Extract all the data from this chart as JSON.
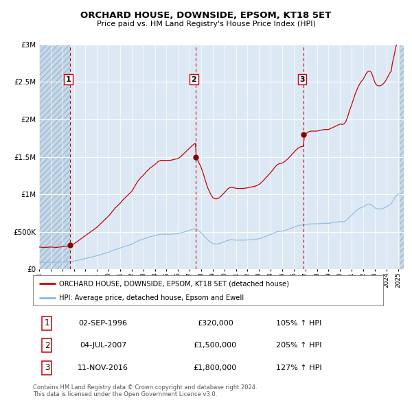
{
  "title": "ORCHARD HOUSE, DOWNSIDE, EPSOM, KT18 5ET",
  "subtitle": "Price paid vs. HM Land Registry's House Price Index (HPI)",
  "fig_facecolor": "#ffffff",
  "plot_bg_color": "#dce9f5",
  "hatch_facecolor": "#c5d8ea",
  "grid_color": "#ffffff",
  "red_line_color": "#cc0000",
  "blue_line_color": "#88b8d8",
  "sale_dot_color": "#880000",
  "vline_color": "#cc0000",
  "ylabel_values": [
    0,
    500000,
    1000000,
    1500000,
    2000000,
    2500000,
    3000000
  ],
  "ylabel_labels": [
    "£0",
    "£500K",
    "£1M",
    "£1.5M",
    "£2M",
    "£2.5M",
    "£3M"
  ],
  "xmin_year": 1994.0,
  "xmax_year": 2025.5,
  "ymin": 0,
  "ymax": 3000000,
  "xtick_years": [
    1994,
    1995,
    1996,
    1997,
    1998,
    1999,
    2000,
    2001,
    2002,
    2003,
    2004,
    2005,
    2006,
    2007,
    2008,
    2009,
    2010,
    2011,
    2012,
    2013,
    2014,
    2015,
    2016,
    2017,
    2018,
    2019,
    2020,
    2021,
    2022,
    2023,
    2024,
    2025
  ],
  "sales": [
    {
      "date": "1996-09-02",
      "price": 320000,
      "label": "1"
    },
    {
      "date": "2007-07-04",
      "price": 1500000,
      "label": "2"
    },
    {
      "date": "2016-11-11",
      "price": 1800000,
      "label": "3"
    }
  ],
  "hatch_end_year": 1996.67,
  "legend_red_label": "ORCHARD HOUSE, DOWNSIDE, EPSOM, KT18 5ET (detached house)",
  "legend_blue_label": "HPI: Average price, detached house, Epsom and Ewell",
  "table_rows": [
    {
      "num": "1",
      "date": "02-SEP-1996",
      "price": "£320,000",
      "hpi": "105% ↑ HPI"
    },
    {
      "num": "2",
      "date": "04-JUL-2007",
      "price": "£1,500,000",
      "hpi": "205% ↑ HPI"
    },
    {
      "num": "3",
      "date": "11-NOV-2016",
      "price": "£1,800,000",
      "hpi": "127% ↑ HPI"
    }
  ],
  "footer": "Contains HM Land Registry data © Crown copyright and database right 2024.\nThis data is licensed under the Open Government Licence v3.0.",
  "blue_hpi_values": [
    [
      1994.0,
      96000
    ],
    [
      1994.08,
      95500
    ],
    [
      1994.17,
      95000
    ],
    [
      1994.25,
      94800
    ],
    [
      1994.33,
      94500
    ],
    [
      1994.42,
      94000
    ],
    [
      1994.5,
      93800
    ],
    [
      1994.58,
      94000
    ],
    [
      1994.67,
      94500
    ],
    [
      1994.75,
      95000
    ],
    [
      1994.83,
      95200
    ],
    [
      1994.92,
      95500
    ],
    [
      1995.0,
      95800
    ],
    [
      1995.08,
      95500
    ],
    [
      1995.17,
      95200
    ],
    [
      1995.25,
      95000
    ],
    [
      1995.33,
      94800
    ],
    [
      1995.42,
      94500
    ],
    [
      1995.5,
      94200
    ],
    [
      1995.58,
      94500
    ],
    [
      1995.67,
      95000
    ],
    [
      1995.75,
      95500
    ],
    [
      1995.83,
      96000
    ],
    [
      1995.92,
      96500
    ],
    [
      1996.0,
      97000
    ],
    [
      1996.08,
      97500
    ],
    [
      1996.17,
      98000
    ],
    [
      1996.25,
      98500
    ],
    [
      1996.33,
      99000
    ],
    [
      1996.42,
      100000
    ],
    [
      1996.5,
      101000
    ],
    [
      1996.58,
      102000
    ],
    [
      1996.67,
      103000
    ],
    [
      1996.75,
      104500
    ],
    [
      1996.83,
      106000
    ],
    [
      1996.92,
      108000
    ],
    [
      1997.0,
      110000
    ],
    [
      1997.08,
      112000
    ],
    [
      1997.17,
      115000
    ],
    [
      1997.25,
      118000
    ],
    [
      1997.33,
      121000
    ],
    [
      1997.42,
      124000
    ],
    [
      1997.5,
      127000
    ],
    [
      1997.58,
      130000
    ],
    [
      1997.67,
      133000
    ],
    [
      1997.75,
      136000
    ],
    [
      1997.83,
      139000
    ],
    [
      1997.92,
      142000
    ],
    [
      1998.0,
      145000
    ],
    [
      1998.08,
      148000
    ],
    [
      1998.17,
      151000
    ],
    [
      1998.25,
      154000
    ],
    [
      1998.33,
      157000
    ],
    [
      1998.42,
      160000
    ],
    [
      1998.5,
      163000
    ],
    [
      1998.58,
      166000
    ],
    [
      1998.67,
      169000
    ],
    [
      1998.75,
      172000
    ],
    [
      1998.83,
      175000
    ],
    [
      1998.92,
      178000
    ],
    [
      1999.0,
      181000
    ],
    [
      1999.08,
      185000
    ],
    [
      1999.17,
      189000
    ],
    [
      1999.25,
      193000
    ],
    [
      1999.33,
      197000
    ],
    [
      1999.42,
      201000
    ],
    [
      1999.5,
      205000
    ],
    [
      1999.58,
      209000
    ],
    [
      1999.67,
      213000
    ],
    [
      1999.75,
      217000
    ],
    [
      1999.83,
      221000
    ],
    [
      1999.92,
      225000
    ],
    [
      2000.0,
      229000
    ],
    [
      2000.08,
      234000
    ],
    [
      2000.17,
      239000
    ],
    [
      2000.25,
      244000
    ],
    [
      2000.33,
      249000
    ],
    [
      2000.42,
      254000
    ],
    [
      2000.5,
      259000
    ],
    [
      2000.58,
      264000
    ],
    [
      2000.67,
      268000
    ],
    [
      2000.75,
      272000
    ],
    [
      2000.83,
      276000
    ],
    [
      2000.92,
      280000
    ],
    [
      2001.0,
      284000
    ],
    [
      2001.08,
      289000
    ],
    [
      2001.17,
      294000
    ],
    [
      2001.25,
      299000
    ],
    [
      2001.33,
      303000
    ],
    [
      2001.42,
      307000
    ],
    [
      2001.5,
      311000
    ],
    [
      2001.58,
      315000
    ],
    [
      2001.67,
      319000
    ],
    [
      2001.75,
      323000
    ],
    [
      2001.83,
      327000
    ],
    [
      2001.92,
      331000
    ],
    [
      2002.0,
      335000
    ],
    [
      2002.08,
      342000
    ],
    [
      2002.17,
      349000
    ],
    [
      2002.25,
      356000
    ],
    [
      2002.33,
      363000
    ],
    [
      2002.42,
      370000
    ],
    [
      2002.5,
      377000
    ],
    [
      2002.58,
      382000
    ],
    [
      2002.67,
      387000
    ],
    [
      2002.75,
      392000
    ],
    [
      2002.83,
      396000
    ],
    [
      2002.92,
      400000
    ],
    [
      2003.0,
      404000
    ],
    [
      2003.08,
      409000
    ],
    [
      2003.17,
      414000
    ],
    [
      2003.25,
      419000
    ],
    [
      2003.33,
      423000
    ],
    [
      2003.42,
      427000
    ],
    [
      2003.5,
      431000
    ],
    [
      2003.58,
      435000
    ],
    [
      2003.67,
      438000
    ],
    [
      2003.75,
      441000
    ],
    [
      2003.83,
      444000
    ],
    [
      2003.92,
      447000
    ],
    [
      2004.0,
      450000
    ],
    [
      2004.08,
      454000
    ],
    [
      2004.17,
      458000
    ],
    [
      2004.25,
      462000
    ],
    [
      2004.33,
      464000
    ],
    [
      2004.42,
      466000
    ],
    [
      2004.5,
      468000
    ],
    [
      2004.58,
      468000
    ],
    [
      2004.67,
      468000
    ],
    [
      2004.75,
      468000
    ],
    [
      2004.83,
      468000
    ],
    [
      2004.92,
      468000
    ],
    [
      2005.0,
      468000
    ],
    [
      2005.08,
      468000
    ],
    [
      2005.17,
      468000
    ],
    [
      2005.25,
      468000
    ],
    [
      2005.33,
      468000
    ],
    [
      2005.42,
      469000
    ],
    [
      2005.5,
      470000
    ],
    [
      2005.58,
      471000
    ],
    [
      2005.67,
      472000
    ],
    [
      2005.75,
      473000
    ],
    [
      2005.83,
      474000
    ],
    [
      2005.92,
      475000
    ],
    [
      2006.0,
      476000
    ],
    [
      2006.08,
      479000
    ],
    [
      2006.17,
      482000
    ],
    [
      2006.25,
      485000
    ],
    [
      2006.33,
      489000
    ],
    [
      2006.42,
      493000
    ],
    [
      2006.5,
      497000
    ],
    [
      2006.58,
      501000
    ],
    [
      2006.67,
      505000
    ],
    [
      2006.75,
      509000
    ],
    [
      2006.83,
      513000
    ],
    [
      2006.92,
      517000
    ],
    [
      2007.0,
      521000
    ],
    [
      2007.08,
      525000
    ],
    [
      2007.17,
      529000
    ],
    [
      2007.25,
      533000
    ],
    [
      2007.33,
      536000
    ],
    [
      2007.42,
      539000
    ],
    [
      2007.5,
      541000
    ],
    [
      2007.58,
      536000
    ],
    [
      2007.67,
      528000
    ],
    [
      2007.75,
      519000
    ],
    [
      2007.83,
      509000
    ],
    [
      2007.92,
      499000
    ],
    [
      2008.0,
      489000
    ],
    [
      2008.08,
      476000
    ],
    [
      2008.17,
      462000
    ],
    [
      2008.25,
      447000
    ],
    [
      2008.33,
      432000
    ],
    [
      2008.42,
      417000
    ],
    [
      2008.5,
      402000
    ],
    [
      2008.58,
      390000
    ],
    [
      2008.67,
      379000
    ],
    [
      2008.75,
      369000
    ],
    [
      2008.83,
      360000
    ],
    [
      2008.92,
      352000
    ],
    [
      2009.0,
      345000
    ],
    [
      2009.08,
      342000
    ],
    [
      2009.17,
      340000
    ],
    [
      2009.25,
      339000
    ],
    [
      2009.33,
      339000
    ],
    [
      2009.42,
      340000
    ],
    [
      2009.5,
      342000
    ],
    [
      2009.58,
      345000
    ],
    [
      2009.67,
      349000
    ],
    [
      2009.75,
      354000
    ],
    [
      2009.83,
      359000
    ],
    [
      2009.92,
      364000
    ],
    [
      2010.0,
      369000
    ],
    [
      2010.08,
      374000
    ],
    [
      2010.17,
      379000
    ],
    [
      2010.25,
      384000
    ],
    [
      2010.33,
      388000
    ],
    [
      2010.42,
      391000
    ],
    [
      2010.5,
      393000
    ],
    [
      2010.58,
      394000
    ],
    [
      2010.67,
      394000
    ],
    [
      2010.75,
      393000
    ],
    [
      2010.83,
      392000
    ],
    [
      2010.92,
      391000
    ],
    [
      2011.0,
      390000
    ],
    [
      2011.08,
      389000
    ],
    [
      2011.17,
      389000
    ],
    [
      2011.25,
      389000
    ],
    [
      2011.33,
      389000
    ],
    [
      2011.42,
      389000
    ],
    [
      2011.5,
      389000
    ],
    [
      2011.58,
      389000
    ],
    [
      2011.67,
      389500
    ],
    [
      2011.75,
      390000
    ],
    [
      2011.83,
      390500
    ],
    [
      2011.92,
      391000
    ],
    [
      2012.0,
      392000
    ],
    [
      2012.08,
      393000
    ],
    [
      2012.17,
      394000
    ],
    [
      2012.25,
      395000
    ],
    [
      2012.33,
      396000
    ],
    [
      2012.42,
      397000
    ],
    [
      2012.5,
      398000
    ],
    [
      2012.58,
      399000
    ],
    [
      2012.67,
      400000
    ],
    [
      2012.75,
      402000
    ],
    [
      2012.83,
      404000
    ],
    [
      2012.92,
      406000
    ],
    [
      2013.0,
      408000
    ],
    [
      2013.08,
      412000
    ],
    [
      2013.17,
      416000
    ],
    [
      2013.25,
      420000
    ],
    [
      2013.33,
      425000
    ],
    [
      2013.42,
      430000
    ],
    [
      2013.5,
      435000
    ],
    [
      2013.58,
      440000
    ],
    [
      2013.67,
      445000
    ],
    [
      2013.75,
      450000
    ],
    [
      2013.83,
      455000
    ],
    [
      2013.92,
      460000
    ],
    [
      2014.0,
      465000
    ],
    [
      2014.08,
      471000
    ],
    [
      2014.17,
      477000
    ],
    [
      2014.25,
      483000
    ],
    [
      2014.33,
      489000
    ],
    [
      2014.42,
      494000
    ],
    [
      2014.5,
      499000
    ],
    [
      2014.58,
      503000
    ],
    [
      2014.67,
      506000
    ],
    [
      2014.75,
      508000
    ],
    [
      2014.83,
      509000
    ],
    [
      2014.92,
      510000
    ],
    [
      2015.0,
      511000
    ],
    [
      2015.08,
      514000
    ],
    [
      2015.17,
      517000
    ],
    [
      2015.25,
      520000
    ],
    [
      2015.33,
      524000
    ],
    [
      2015.42,
      528000
    ],
    [
      2015.5,
      532000
    ],
    [
      2015.58,
      537000
    ],
    [
      2015.67,
      542000
    ],
    [
      2015.75,
      547000
    ],
    [
      2015.83,
      552000
    ],
    [
      2015.92,
      557000
    ],
    [
      2016.0,
      562000
    ],
    [
      2016.08,
      567000
    ],
    [
      2016.17,
      572000
    ],
    [
      2016.25,
      577000
    ],
    [
      2016.33,
      581000
    ],
    [
      2016.42,
      584000
    ],
    [
      2016.5,
      587000
    ],
    [
      2016.58,
      589000
    ],
    [
      2016.67,
      590000
    ],
    [
      2016.75,
      591000
    ],
    [
      2016.83,
      592000
    ],
    [
      2016.92,
      593000
    ],
    [
      2017.0,
      594000
    ],
    [
      2017.08,
      597000
    ],
    [
      2017.17,
      600000
    ],
    [
      2017.25,
      603000
    ],
    [
      2017.33,
      605000
    ],
    [
      2017.42,
      606000
    ],
    [
      2017.5,
      607000
    ],
    [
      2017.58,
      607000
    ],
    [
      2017.67,
      607000
    ],
    [
      2017.75,
      607000
    ],
    [
      2017.83,
      607000
    ],
    [
      2017.92,
      607000
    ],
    [
      2018.0,
      607000
    ],
    [
      2018.08,
      608000
    ],
    [
      2018.17,
      609000
    ],
    [
      2018.25,
      610000
    ],
    [
      2018.33,
      611000
    ],
    [
      2018.42,
      612000
    ],
    [
      2018.5,
      613000
    ],
    [
      2018.58,
      614000
    ],
    [
      2018.67,
      614000
    ],
    [
      2018.75,
      614000
    ],
    [
      2018.83,
      614000
    ],
    [
      2018.92,
      614000
    ],
    [
      2019.0,
      614000
    ],
    [
      2019.08,
      616000
    ],
    [
      2019.17,
      618000
    ],
    [
      2019.25,
      620000
    ],
    [
      2019.33,
      622000
    ],
    [
      2019.42,
      624000
    ],
    [
      2019.5,
      626000
    ],
    [
      2019.58,
      628000
    ],
    [
      2019.67,
      630000
    ],
    [
      2019.75,
      632000
    ],
    [
      2019.83,
      634000
    ],
    [
      2019.92,
      636000
    ],
    [
      2020.0,
      638000
    ],
    [
      2020.08,
      638000
    ],
    [
      2020.17,
      636000
    ],
    [
      2020.25,
      637000
    ],
    [
      2020.33,
      639000
    ],
    [
      2020.42,
      643000
    ],
    [
      2020.5,
      649000
    ],
    [
      2020.58,
      660000
    ],
    [
      2020.67,
      673000
    ],
    [
      2020.75,
      687000
    ],
    [
      2020.83,
      700000
    ],
    [
      2020.92,
      712000
    ],
    [
      2021.0,
      723000
    ],
    [
      2021.08,
      736000
    ],
    [
      2021.17,
      749000
    ],
    [
      2021.25,
      762000
    ],
    [
      2021.33,
      774000
    ],
    [
      2021.42,
      785000
    ],
    [
      2021.5,
      795000
    ],
    [
      2021.58,
      804000
    ],
    [
      2021.67,
      812000
    ],
    [
      2021.75,
      819000
    ],
    [
      2021.83,
      825000
    ],
    [
      2021.92,
      830000
    ],
    [
      2022.0,
      835000
    ],
    [
      2022.08,
      843000
    ],
    [
      2022.17,
      851000
    ],
    [
      2022.25,
      859000
    ],
    [
      2022.33,
      865000
    ],
    [
      2022.42,
      869000
    ],
    [
      2022.5,
      871000
    ],
    [
      2022.58,
      870000
    ],
    [
      2022.67,
      866000
    ],
    [
      2022.75,
      858000
    ],
    [
      2022.83,
      847000
    ],
    [
      2022.92,
      834000
    ],
    [
      2023.0,
      822000
    ],
    [
      2023.08,
      814000
    ],
    [
      2023.17,
      809000
    ],
    [
      2023.25,
      807000
    ],
    [
      2023.33,
      806000
    ],
    [
      2023.42,
      806000
    ],
    [
      2023.5,
      807000
    ],
    [
      2023.58,
      809000
    ],
    [
      2023.67,
      812000
    ],
    [
      2023.75,
      816000
    ],
    [
      2023.83,
      821000
    ],
    [
      2023.92,
      827000
    ],
    [
      2024.0,
      834000
    ],
    [
      2024.08,
      842000
    ],
    [
      2024.17,
      850000
    ],
    [
      2024.25,
      858000
    ],
    [
      2024.33,
      865000
    ],
    [
      2024.42,
      870000
    ],
    [
      2024.5,
      900000
    ],
    [
      2024.58,
      920000
    ],
    [
      2024.67,
      940000
    ],
    [
      2024.75,
      960000
    ],
    [
      2024.83,
      980000
    ],
    [
      2024.92,
      990000
    ],
    [
      2025.0,
      1000000
    ],
    [
      2025.08,
      1005000
    ],
    [
      2025.17,
      1008000
    ]
  ],
  "red_hpi_scale_factor_1": 3.333,
  "red_hpi_scale_factor_2_to_3": 2.778,
  "red_hpi_scale_factor_post_3": 3.044
}
